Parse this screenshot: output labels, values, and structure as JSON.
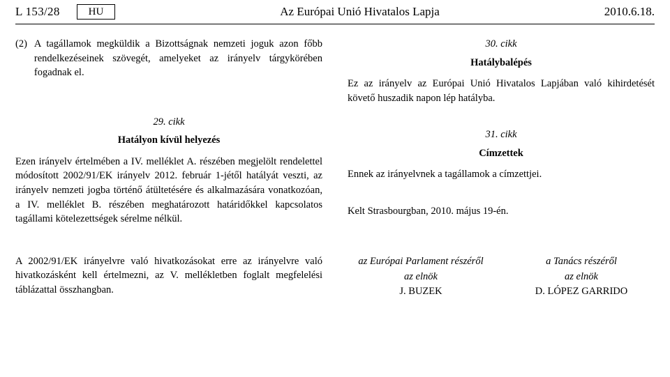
{
  "header": {
    "page_ref": "L 153/28",
    "lang": "HU",
    "journal": "Az Európai Unió Hivatalos Lapja",
    "date": "2010.6.18."
  },
  "left_col": {
    "recital_num": "(2)",
    "recital_text": "A tagállamok megküldik a Bizottságnak nemzeti joguk azon főbb rendelkezéseinek szövegét, amelyeket az irányelv tárgykörében fogadnak el.",
    "art29_num": "29. cikk",
    "art29_title": "Hatályon kívül helyezés",
    "art29_body": "Ezen irányelv értelmében a IV. melléklet A. részében megjelölt rendelettel módosított 2002/91/EK irányelv 2012. február 1-jétől hatályát veszti, az irányelv nemzeti jogba történő átültetésére és alkalmazására vonatkozóan, a IV. melléklet B. részében meghatározott határidőkkel kapcsolatos tagállami kötelezettségek sérelme nélkül."
  },
  "right_col": {
    "art30_num": "30. cikk",
    "art30_title": "Hatálybalépés",
    "art30_body": "Ez az irányelv az Európai Unió Hivatalos Lapjában való kihirdetését követő huszadik napon lép hatályba.",
    "art31_num": "31. cikk",
    "art31_title": "Címzettek",
    "art31_body": "Ennek az irányelvnek a tagállamok a címzettjei.",
    "done_at": "Kelt Strasbourgban, 2010. május 19-én."
  },
  "bottom_left": "A 2002/91/EK irányelvre való hivatkozásokat erre az irányelvre való hivatkozásként kell értelmezni, az V. mellékletben foglalt megfelelési táblázattal összhangban.",
  "sig": {
    "ep_behalf": "az Európai Parlament részéről",
    "council_behalf": "a Tanács részéről",
    "role": "az elnök",
    "ep_name": "J. BUZEK",
    "council_name": "D. LÓPEZ GARRIDO"
  },
  "colors": {
    "text": "#000000",
    "bg": "#ffffff",
    "rule": "#000000"
  }
}
